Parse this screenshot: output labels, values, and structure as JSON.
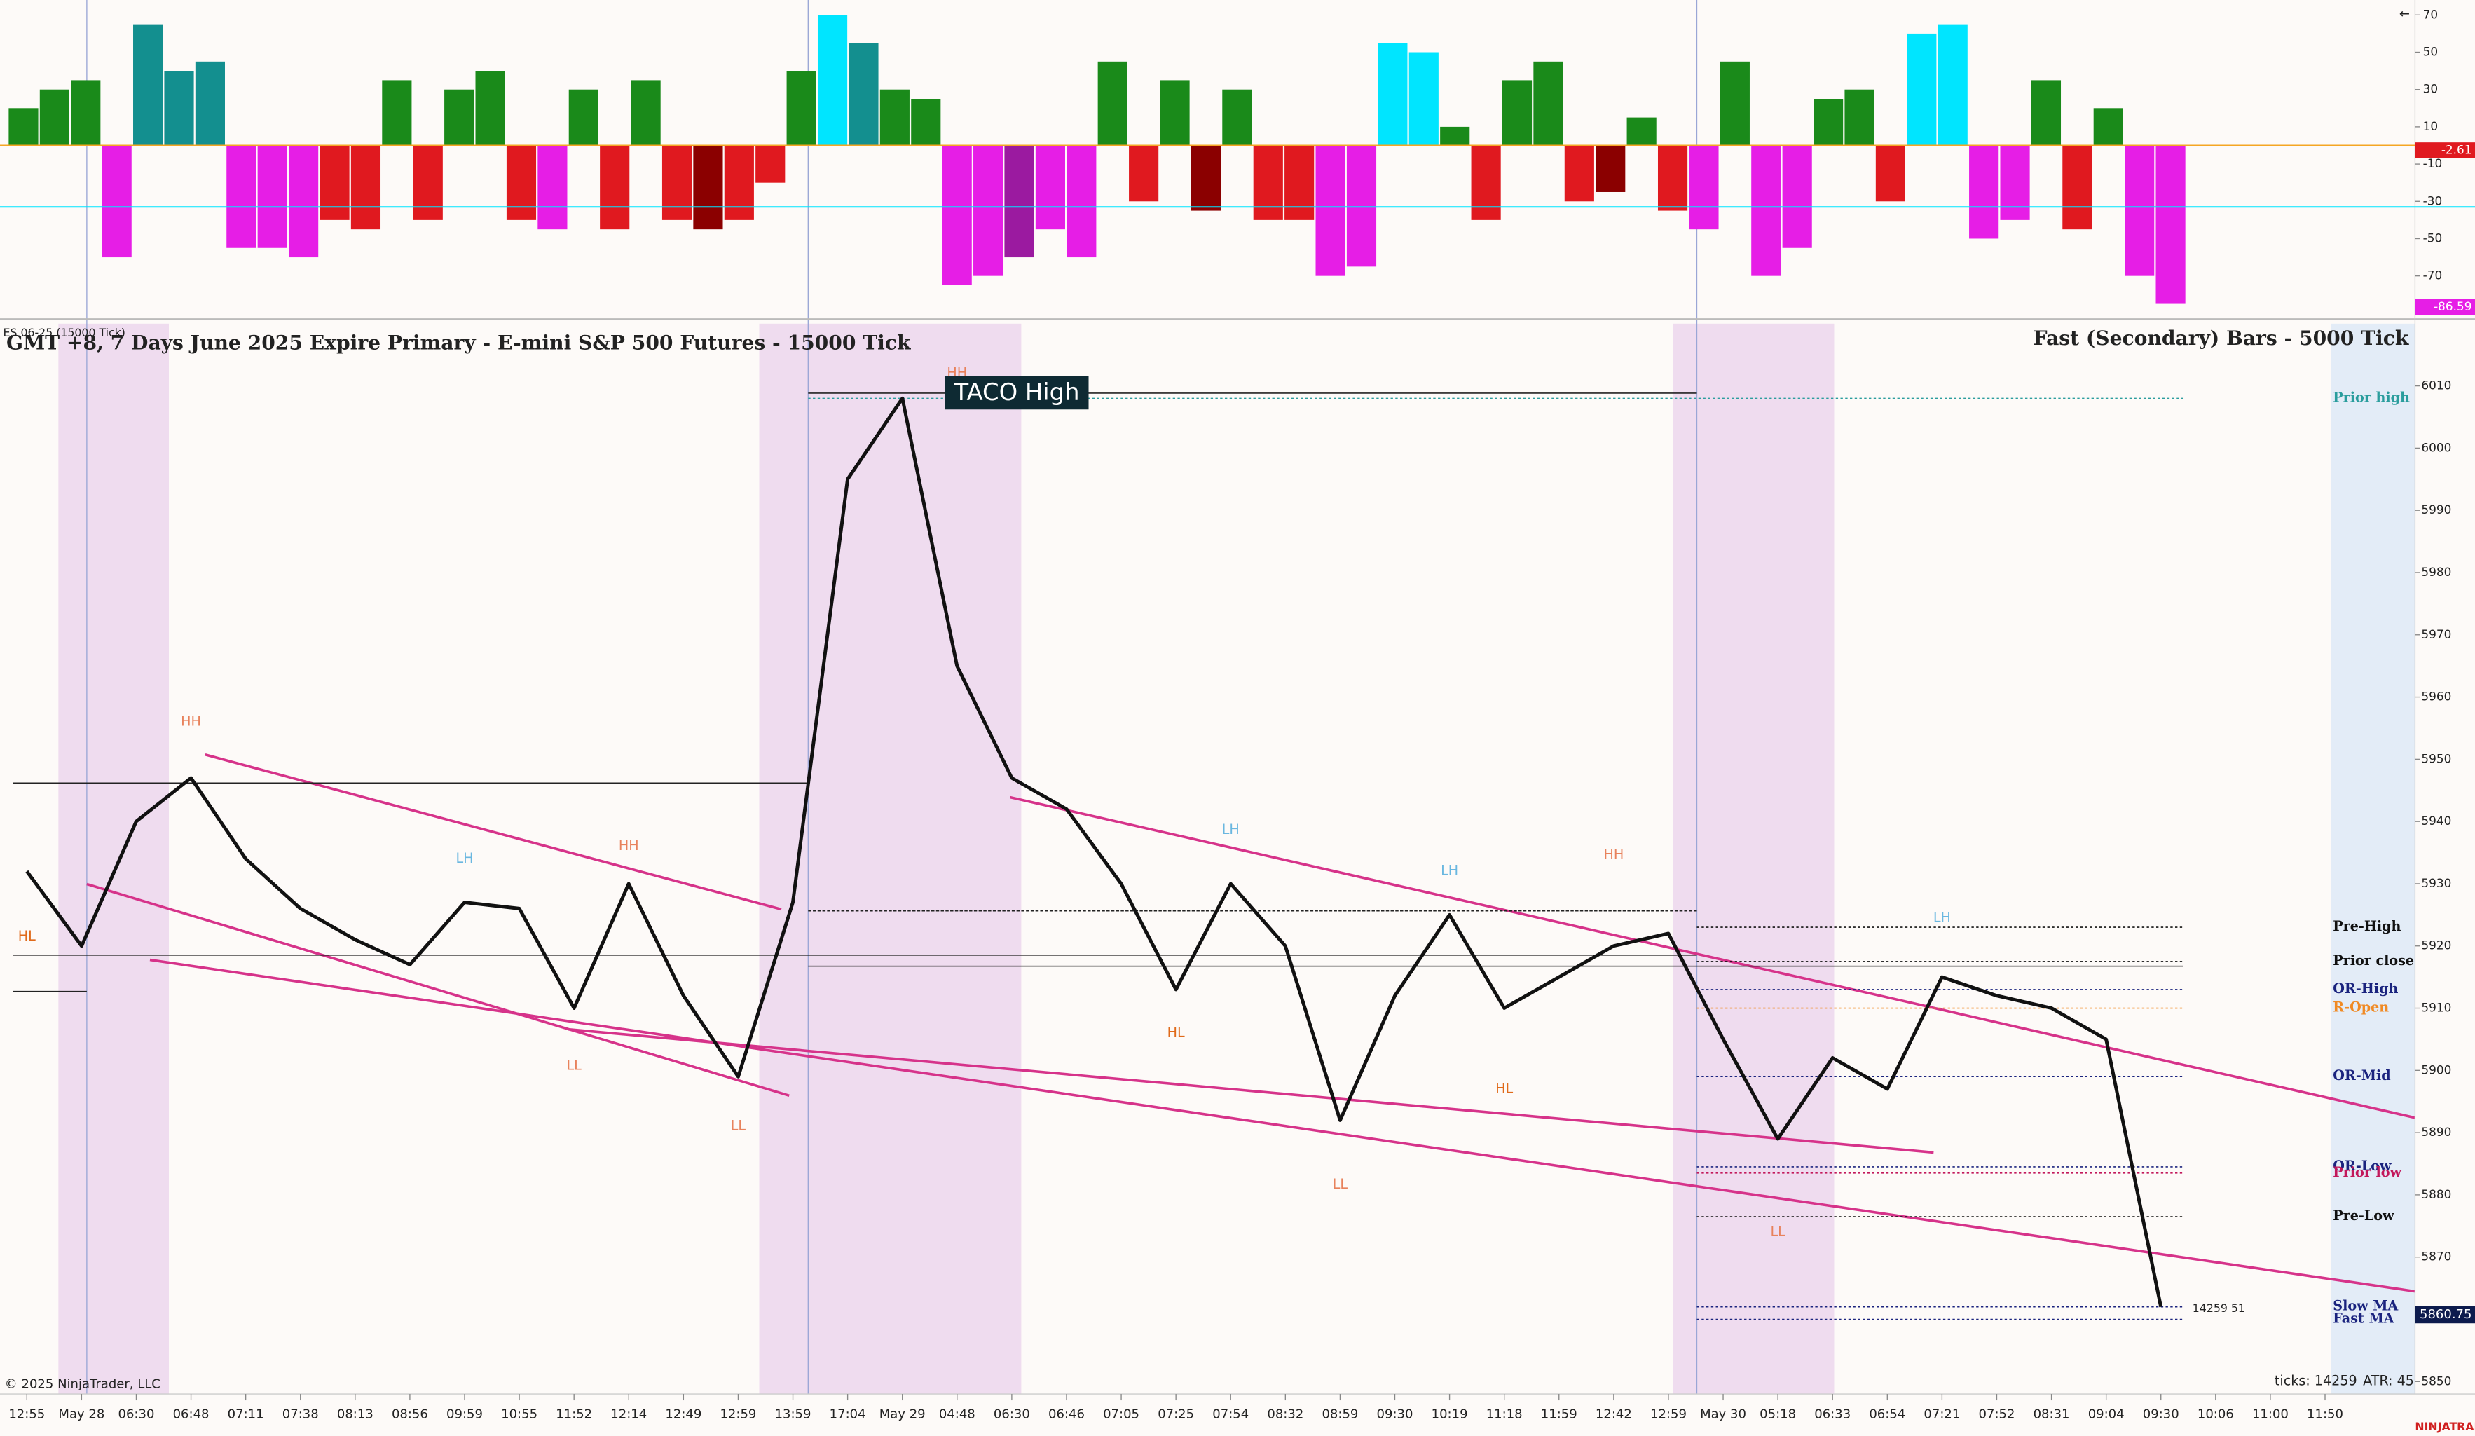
{
  "chart_data": [
    {
      "type": "bar",
      "values": [
        20,
        30,
        35,
        -60,
        65,
        40,
        45,
        -55,
        -55,
        -60,
        -40,
        -45,
        35,
        -40,
        30,
        40,
        -40,
        -45,
        30,
        -45,
        35,
        -40,
        -45,
        -40,
        -20,
        40,
        70,
        55,
        30,
        25,
        -75,
        -70,
        -60,
        -45,
        -60,
        45,
        -30,
        35,
        -35,
        30,
        -40,
        -40,
        -70,
        -65,
        55,
        50,
        10,
        -40,
        35,
        45,
        -30,
        -25,
        15,
        -35,
        -45,
        45,
        -70,
        -55,
        25,
        30,
        -30,
        60,
        65,
        -50,
        -40,
        35,
        -45,
        20,
        -70,
        -85
      ],
      "colors": [
        "#1a8a1a",
        "#1a8a1a",
        "#1a8a1a",
        "#e61ee6",
        "#138f8f",
        "#138f8f",
        "#138f8f",
        "#e61ee6",
        "#e61ee6",
        "#e61ee6",
        "#e0191f",
        "#e0191f",
        "#1a8a1a",
        "#e0191f",
        "#1a8a1a",
        "#1a8a1a",
        "#e0191f",
        "#e61ee6",
        "#1a8a1a",
        "#e0191f",
        "#1a8a1a",
        "#e0191f",
        "#8b0000",
        "#e0191f",
        "#e0191f",
        "#1a8a1a",
        "#00e5ff",
        "#138f8f",
        "#1a8a1a",
        "#1a8a1a",
        "#e61ee6",
        "#e61ee6",
        "#9b1aa0",
        "#e61ee6",
        "#e61ee6",
        "#1a8a1a",
        "#e0191f",
        "#1a8a1a",
        "#8b0000",
        "#1a8a1a",
        "#e0191f",
        "#e0191f",
        "#e61ee6",
        "#e61ee6",
        "#00e5ff",
        "#00e5ff",
        "#1a8a1a",
        "#e0191f",
        "#1a8a1a",
        "#1a8a1a",
        "#e0191f",
        "#8b0000",
        "#1a8a1a",
        "#e0191f",
        "#e61ee6",
        "#1a8a1a",
        "#e61ee6",
        "#e61ee6",
        "#1a8a1a",
        "#1a8a1a",
        "#e0191f",
        "#00e5ff",
        "#00e5ff",
        "#e61ee6",
        "#e61ee6",
        "#1a8a1a",
        "#e0191f",
        "#1a8a1a",
        "#e61ee6",
        "#e61ee6"
      ],
      "ylim": [
        -88,
        78
      ],
      "yticks": [
        70,
        50,
        30,
        10,
        -10,
        -30,
        -50,
        -70
      ],
      "hlines": [
        {
          "value": 0,
          "color": "#f5a623"
        },
        {
          "value": -33,
          "color": "#00e5ff"
        }
      ],
      "last_values": [
        {
          "value": -2.61,
          "color": "#e0191f"
        },
        {
          "value": -86.59,
          "color": "#e61ee6"
        }
      ]
    },
    {
      "type": "line",
      "title": "GMT +8, 7 Days June 2025 Expire Primary   - E-mini S&P 500 Futures - 15000 Tick",
      "subtitle": "Fast (Secondary) Bars - 5000 Tick",
      "instrument": "ES 06-25 (15000 Tick)",
      "copyright": "© 2025 NinjaTrader, LLC",
      "brand": "NINJATRADER",
      "status": [
        "ticks: 14259",
        "ATR: 45"
      ],
      "price_note": "14259  51",
      "categories": [
        "12:55",
        "May 28",
        "06:30",
        "06:48",
        "07:11",
        "07:38",
        "08:13",
        "08:56",
        "09:59",
        "10:55",
        "11:52",
        "12:14",
        "12:49",
        "12:59",
        "13:59",
        "17:04",
        "May 29",
        "04:48",
        "06:30",
        "06:46",
        "07:05",
        "07:25",
        "07:54",
        "08:32",
        "08:59",
        "09:30",
        "10:19",
        "11:18",
        "11:59",
        "12:42",
        "12:59",
        "May 30",
        "05:18",
        "06:33",
        "06:54",
        "07:21",
        "07:52",
        "08:31",
        "09:04",
        "09:30",
        "10:06",
        "11:00",
        "11:50"
      ],
      "series": [
        {
          "name": "ES 06-25",
          "color": "#111111",
          "values": [
            5932,
            5920,
            5940,
            5947,
            5934,
            5926,
            5921,
            5917,
            5927,
            5926,
            5910,
            5930,
            5912,
            5899,
            5927,
            5995,
            6008,
            5965,
            5947,
            5942,
            5930,
            5913,
            5930,
            5920,
            5892,
            5912,
            5925,
            5910,
            5915,
            5920,
            5922,
            5905,
            5889,
            5902,
            5897,
            5915,
            5912,
            5910,
            5905,
            5862,
            null,
            null,
            null
          ]
        }
      ],
      "ylim": [
        5848,
        6020
      ],
      "yticks": [
        5850,
        5860,
        5870,
        5880,
        5890,
        5900,
        5910,
        5920,
        5930,
        5940,
        5950,
        5960,
        5970,
        5980,
        5990,
        6000,
        6010
      ],
      "last_price": 5860.75,
      "levels": [
        {
          "label": "Prior high",
          "value": 6008,
          "color": "#2a9d9d"
        },
        {
          "label": "Pre-High",
          "value": 5923,
          "color": "#111111"
        },
        {
          "label": "Prior close",
          "value": 5917.5,
          "color": "#111111"
        },
        {
          "label": "OR-High",
          "value": 5913,
          "color": "#1a237e"
        },
        {
          "label": "R-Open",
          "value": 5910,
          "color": "#f08a24"
        },
        {
          "label": "OR-Mid",
          "value": 5899,
          "color": "#1a237e"
        },
        {
          "label": "OR-Low",
          "value": 5884.5,
          "color": "#1a237e"
        },
        {
          "label": "Prior low",
          "value": 5883.5,
          "color": "#c2185b"
        },
        {
          "label": "Pre-Low",
          "value": 5876.5,
          "color": "#111111"
        },
        {
          "label": "Slow MA",
          "value": 5862,
          "color": "#1a237e"
        },
        {
          "label": "Fast MA",
          "value": 5860,
          "color": "#1a237e"
        }
      ],
      "annotations": [
        {
          "text": "HH",
          "category": "06:48",
          "value": 5956,
          "color": "#e8825c"
        },
        {
          "text": "HL",
          "category": "12:55",
          "value": 5921.5,
          "color": "#e06a1a"
        },
        {
          "text": "LH",
          "category": "09:59",
          "value": 5934,
          "color": "#6ab7e0"
        },
        {
          "text": "HH",
          "category": "12:14",
          "value": 5936,
          "color": "#e8825c"
        },
        {
          "text": "LL",
          "category": "11:52",
          "value": 5900.7,
          "color": "#e8825c"
        },
        {
          "text": "LL",
          "category": "12:59",
          "value": 5891,
          "color": "#e8825c"
        },
        {
          "text": "HH",
          "category": "04:48",
          "value": 6012,
          "color": "#e8825c"
        },
        {
          "text": "HL",
          "category": "07:25",
          "value": 5906,
          "color": "#e06a1a"
        },
        {
          "text": "LH",
          "category": "07:54",
          "value": 5938.6,
          "color": "#6ab7e0"
        },
        {
          "text": "LL",
          "category": "08:59",
          "value": 5881.6,
          "color": "#e8825c"
        },
        {
          "text": "LH",
          "category": "10:19",
          "value": 5932,
          "color": "#6ab7e0"
        },
        {
          "text": "HL",
          "category": "11:18",
          "value": 5897,
          "color": "#e06a1a"
        },
        {
          "text": "HH",
          "category": "12:42",
          "value": 5934.6,
          "color": "#e8825c"
        },
        {
          "text": "LL",
          "category": "05:18",
          "value": 5874,
          "color": "#e8825c"
        },
        {
          "text": "LH",
          "category": "07:21",
          "value": 5924.5,
          "color": "#6ab7e0"
        }
      ],
      "callout": {
        "text": "TACO High",
        "category": "May 29",
        "value": 6009
      }
    }
  ]
}
